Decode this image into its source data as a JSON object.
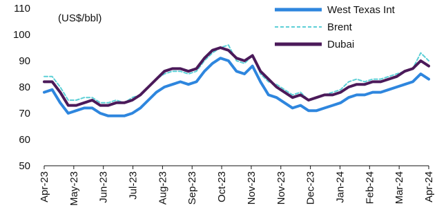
{
  "chart_data": {
    "type": "line",
    "unit_label": "(US$/bbl)",
    "title": "",
    "xlabel": "",
    "ylabel": "",
    "ylim": [
      50,
      110
    ],
    "yticks": [
      50,
      60,
      70,
      80,
      90,
      100,
      110
    ],
    "xticks": [
      "Apr-23",
      "May-23",
      "Jun-23",
      "Jul-23",
      "Aug-23",
      "Sep-23",
      "Oct-23",
      "Nov-23",
      "Nov-23",
      "Dec-23",
      "Jan-24",
      "Feb-24",
      "Mar-24",
      "Apr-24"
    ],
    "x": [
      "Apr-23",
      "Apr-23",
      "Apr-23",
      "Apr-23",
      "May-23",
      "May-23",
      "May-23",
      "May-23",
      "Jun-23",
      "Jun-23",
      "Jun-23",
      "Jun-23",
      "Jul-23",
      "Jul-23",
      "Jul-23",
      "Jul-23",
      "Aug-23",
      "Aug-23",
      "Aug-23",
      "Aug-23",
      "Sep-23",
      "Sep-23",
      "Sep-23",
      "Sep-23",
      "Oct-23",
      "Oct-23",
      "Oct-23",
      "Oct-23",
      "Nov-23",
      "Nov-23",
      "Nov-23",
      "Nov-23",
      "Dec-23",
      "Dec-23",
      "Dec-23",
      "Dec-23",
      "Jan-24",
      "Jan-24",
      "Jan-24",
      "Jan-24",
      "Feb-24",
      "Feb-24",
      "Feb-24",
      "Feb-24",
      "Mar-24",
      "Mar-24",
      "Mar-24",
      "Mar-24",
      "Apr-24"
    ],
    "grid": false,
    "legend_position": "top-right",
    "series": [
      {
        "name": "West Texas Int",
        "color": "#2e86de",
        "style": "solid-thick",
        "values": [
          78,
          79,
          74,
          70,
          71,
          72,
          72,
          70,
          69,
          69,
          69,
          70,
          72,
          75,
          78,
          80,
          81,
          82,
          81,
          82,
          86,
          89,
          91,
          90,
          86,
          85,
          88,
          82,
          77,
          76,
          74,
          72,
          73,
          71,
          71,
          72,
          73,
          74,
          76,
          77,
          77,
          78,
          78,
          79,
          80,
          81,
          82,
          85,
          83
        ]
      },
      {
        "name": "Brent",
        "color": "#5ccfd6",
        "style": "dashed",
        "values": [
          84,
          84,
          80,
          75,
          75,
          76,
          76,
          74,
          74,
          75,
          74,
          76,
          77,
          80,
          83,
          85,
          86,
          86,
          85,
          86,
          90,
          93,
          95,
          96,
          90,
          89,
          92,
          85,
          82,
          81,
          79,
          77,
          78,
          75,
          76,
          77,
          78,
          79,
          82,
          83,
          82,
          83,
          83,
          84,
          85,
          86,
          87,
          93,
          90
        ]
      },
      {
        "name": "Dubai",
        "color": "#4b1a5a",
        "style": "solid-thick",
        "values": [
          82,
          82,
          78,
          73,
          73,
          74,
          75,
          73,
          73,
          74,
          74,
          75,
          77,
          80,
          83,
          86,
          87,
          87,
          86,
          87,
          91,
          94,
          95,
          94,
          91,
          90,
          92,
          86,
          83,
          80,
          78,
          76,
          77,
          75,
          76,
          77,
          77,
          78,
          80,
          81,
          81,
          82,
          82,
          83,
          84,
          86,
          87,
          90,
          88
        ]
      }
    ]
  }
}
